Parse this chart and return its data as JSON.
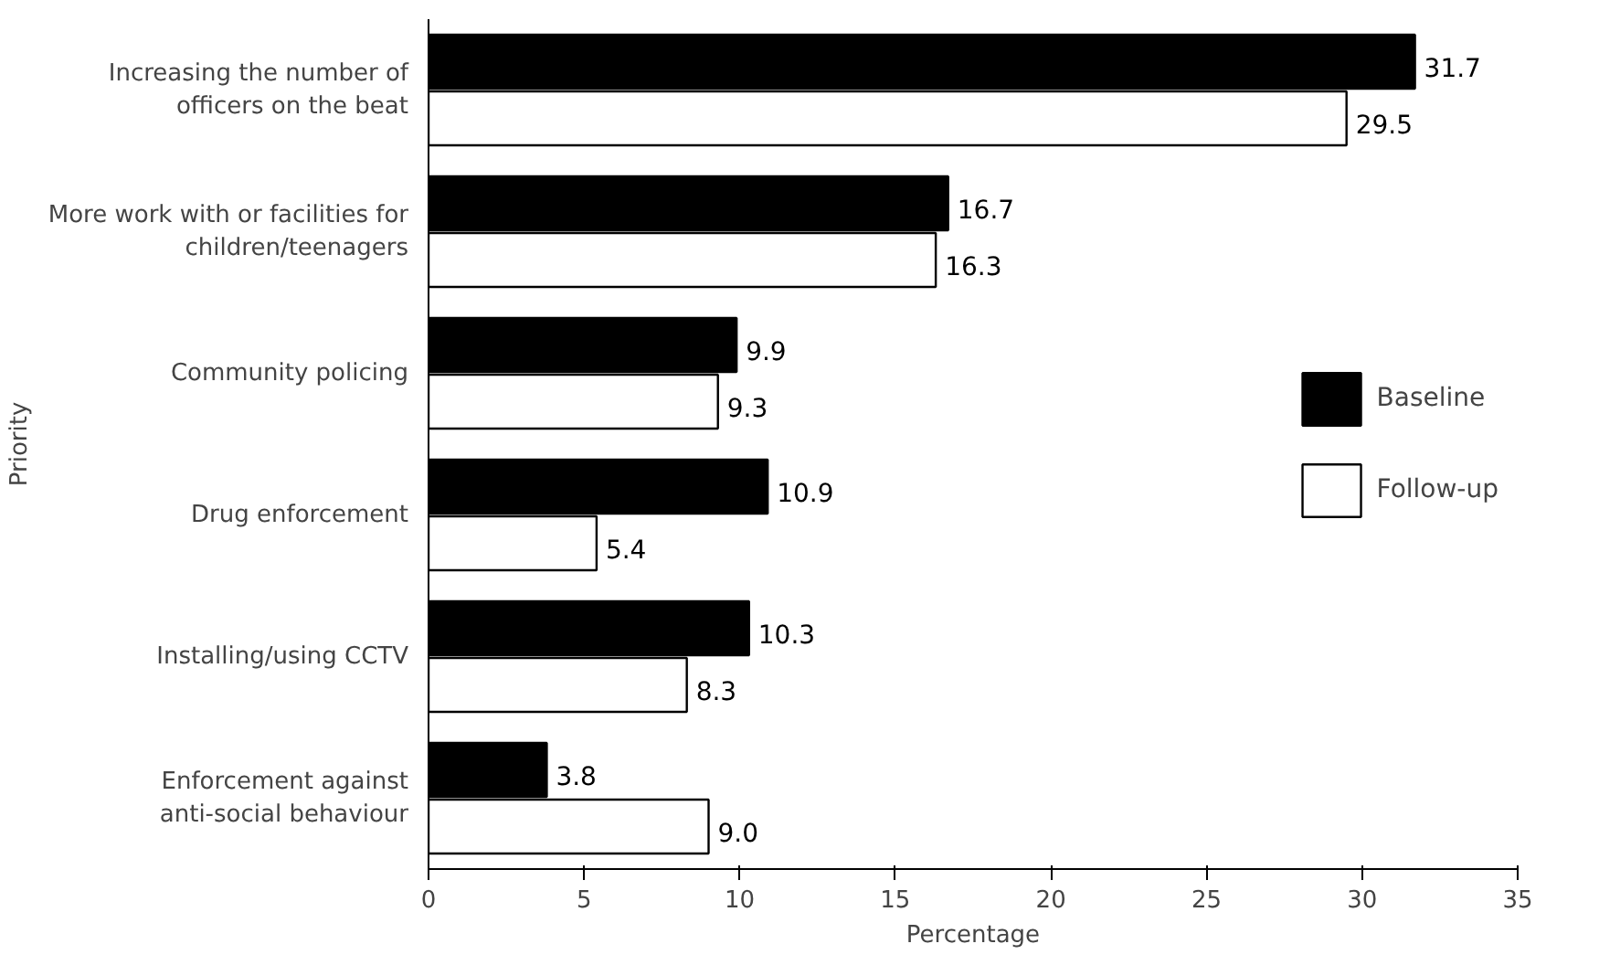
{
  "chart_data": {
    "type": "bar",
    "orientation": "horizontal",
    "xlabel": "Percentage",
    "ylabel": "Priority",
    "categories": [
      "Increasing the number of\nofficers on the beat",
      "More work with or facilities for\nchildren/teenagers",
      "Community policing",
      "Drug enforcement",
      "Installing/using CCTV",
      "Enforcement against\nanti-social behaviour"
    ],
    "series": [
      {
        "name": "Baseline",
        "color": "#000000",
        "values": [
          31.7,
          16.7,
          9.9,
          10.9,
          10.3,
          3.8
        ],
        "value_labels": [
          "31.7",
          "16.7",
          "9.9",
          "10.9",
          "10.3",
          "3.8"
        ]
      },
      {
        "name": "Follow-up",
        "color": "#ffffff",
        "values": [
          29.5,
          16.3,
          9.3,
          5.4,
          8.3,
          9.0
        ],
        "value_labels": [
          "29.5",
          "16.3",
          "9.3",
          "5.4",
          "8.3",
          "9.0"
        ]
      }
    ],
    "xlim": [
      0,
      35
    ],
    "xticks": [
      0,
      5,
      10,
      15,
      20,
      25,
      30,
      35
    ],
    "grid": false,
    "legend": "right"
  }
}
